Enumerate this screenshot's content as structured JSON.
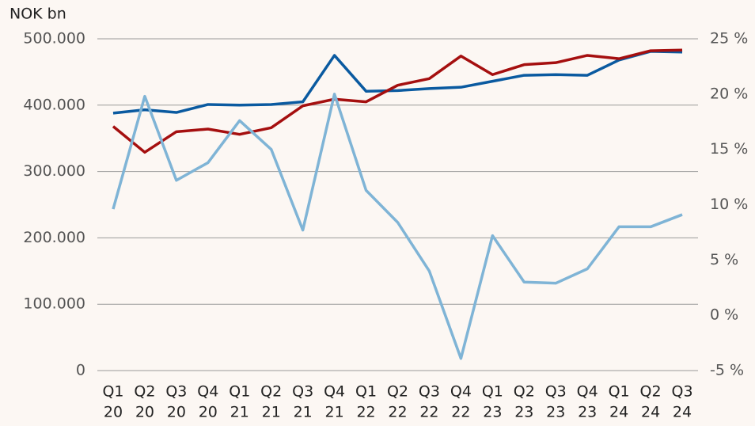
{
  "chart_data": {
    "type": "line",
    "y_axis_label": "NOK bn",
    "categories": [
      [
        "Q1",
        "20"
      ],
      [
        "Q2",
        "20"
      ],
      [
        "Q3",
        "20"
      ],
      [
        "Q4",
        "20"
      ],
      [
        "Q1",
        "21"
      ],
      [
        "Q2",
        "21"
      ],
      [
        "Q3",
        "21"
      ],
      [
        "Q4",
        "21"
      ],
      [
        "Q1",
        "22"
      ],
      [
        "Q2",
        "22"
      ],
      [
        "Q3",
        "22"
      ],
      [
        "Q4",
        "22"
      ],
      [
        "Q1",
        "23"
      ],
      [
        "Q2",
        "23"
      ],
      [
        "Q3",
        "23"
      ],
      [
        "Q4",
        "23"
      ],
      [
        "Q1",
        "24"
      ],
      [
        "Q2",
        "24"
      ],
      [
        "Q3",
        "24"
      ]
    ],
    "series": [
      {
        "color": "#0a5aa0",
        "values": [
          388000,
          393000,
          389000,
          401000,
          400000,
          401000,
          405000,
          475000,
          421000,
          422000,
          425000,
          427000,
          436000,
          445000,
          446000,
          445000,
          468000,
          481000,
          480000
        ]
      },
      {
        "color": "#a50f0f",
        "values": [
          368000,
          329000,
          360000,
          364000,
          356000,
          366000,
          399000,
          409000,
          405000,
          430000,
          440000,
          474000,
          446000,
          461000,
          464000,
          475000,
          470000,
          482000,
          483000
        ]
      },
      {
        "color": "#7fb4d6",
        "axis": "y2",
        "values": [
          9.6,
          19.8,
          12.2,
          13.8,
          17.6,
          15.0,
          7.7,
          20.0,
          11.3,
          8.4,
          4.0,
          -3.9,
          7.2,
          3.0,
          2.9,
          4.2,
          8.0,
          8.0,
          9.1
        ]
      }
    ],
    "ylim": [
      0,
      500000
    ],
    "yticks": [
      0,
      {
        "value": 100000,
        "label": "100.000"
      },
      {
        "value": 200000,
        "label": "200.000"
      },
      {
        "value": 300000,
        "label": "300.000"
      },
      {
        "value": 400000,
        "label": "400.000"
      },
      {
        "value": 500000,
        "label": "500.000"
      }
    ],
    "y2lim": [
      -5,
      25
    ],
    "y2ticks": [
      {
        "value": -5,
        "label": "-5 %"
      },
      {
        "value": 0,
        "label": "0 %"
      },
      {
        "value": 5,
        "label": "5 %"
      },
      {
        "value": 10,
        "label": "10 %"
      },
      {
        "value": 15,
        "label": "15 %"
      },
      {
        "value": 20,
        "label": "20 %"
      },
      {
        "value": 25,
        "label": "25 %"
      }
    ],
    "grid": true
  }
}
